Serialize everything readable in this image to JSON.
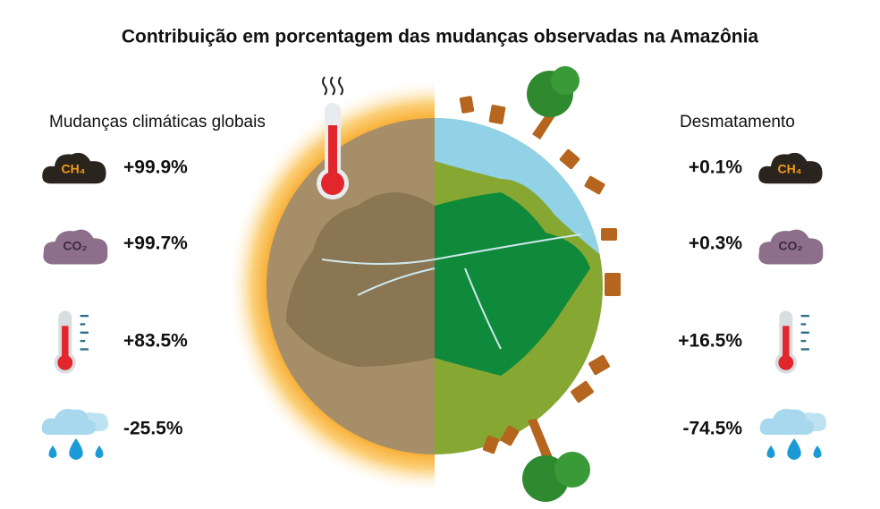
{
  "title": "Contribuição em porcentagem das mudanças observadas na Amazônia",
  "left": {
    "heading": "Mudanças climáticas globais",
    "items": [
      {
        "icon_label": "CH₄",
        "value": "+99.9%"
      },
      {
        "icon_label": "CO₂",
        "value": "+99.7%"
      },
      {
        "value": "+83.5%"
      },
      {
        "value": "-25.5%"
      }
    ]
  },
  "right": {
    "heading": "Desmatamento",
    "items": [
      {
        "icon_label": "CH₄",
        "value": "+0.1%"
      },
      {
        "icon_label": "CO₂",
        "value": "+0.3%"
      },
      {
        "value": "+16.5%"
      },
      {
        "value": "-74.5%"
      }
    ]
  }
}
